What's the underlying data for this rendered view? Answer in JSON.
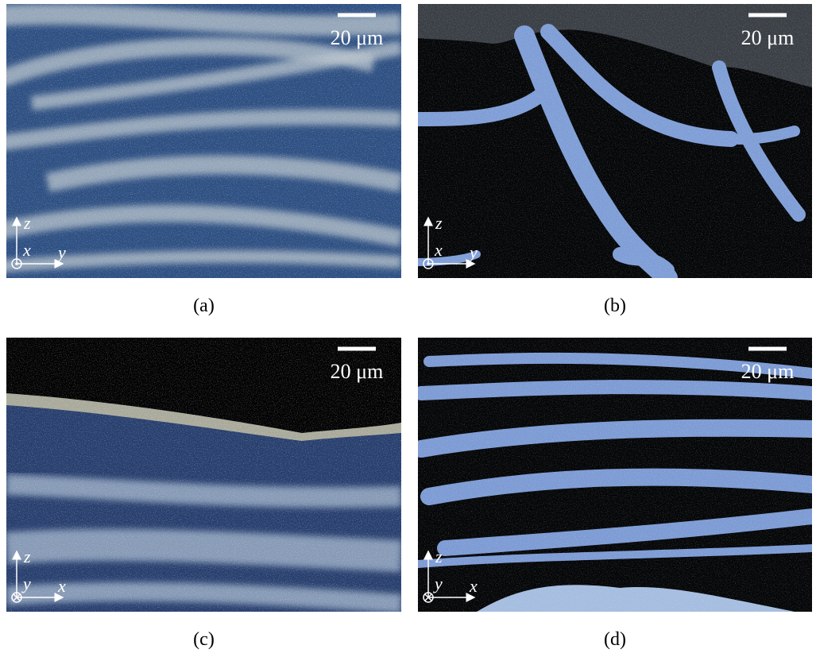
{
  "panels": [
    {
      "caption": "(a)",
      "scale_bar": "20 μm",
      "axes": {
        "vertical": "z",
        "horizontal": "y",
        "normal": "x"
      }
    },
    {
      "caption": "(b)",
      "scale_bar": "20 μm",
      "axes": {
        "vertical": "z",
        "horizontal": "y",
        "normal": "x"
      }
    },
    {
      "caption": "(c)",
      "scale_bar": "20 μm",
      "axes": {
        "vertical": "z",
        "horizontal": "x",
        "normal": "y"
      }
    },
    {
      "caption": "(d)",
      "scale_bar": "20 μm",
      "axes": {
        "vertical": "z",
        "horizontal": "x",
        "normal": "y"
      }
    }
  ]
}
